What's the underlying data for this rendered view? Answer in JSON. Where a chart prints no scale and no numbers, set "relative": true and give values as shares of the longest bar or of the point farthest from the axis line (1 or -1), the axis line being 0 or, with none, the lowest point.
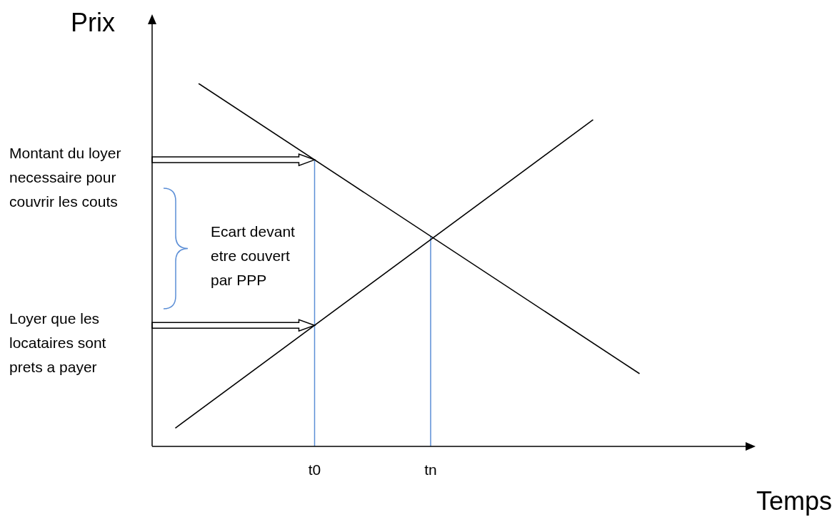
{
  "chart_data": {
    "type": "line",
    "relative": true,
    "xlabel": "Temps",
    "ylabel": "Prix",
    "categories": [
      null,
      null,
      null,
      null,
      null,
      null,
      null,
      "t0",
      null,
      null,
      null,
      null,
      "tn",
      null,
      null,
      null,
      null,
      null,
      null,
      null,
      null,
      null,
      null,
      null,
      null,
      null,
      null
    ],
    "series": [
      {
        "color": "#000000",
        "values": [
          null,
          null,
          1,
          null,
          null,
          null,
          null,
          null,
          null,
          null,
          null,
          null,
          null,
          null,
          null,
          null,
          null,
          null,
          null,
          null,
          null,
          0.2,
          null,
          null,
          null,
          null,
          null
        ]
      },
      {
        "color": "#000000",
        "values": [
          null,
          0.05,
          null,
          null,
          null,
          null,
          null,
          null,
          null,
          null,
          null,
          null,
          null,
          null,
          null,
          null,
          null,
          null,
          null,
          0.9,
          null,
          null,
          null,
          null,
          null,
          null,
          null
        ]
      }
    ],
    "ref_lines": [
      {
        "axis": "x",
        "value": "t0",
        "color": "#5b8ed6"
      },
      {
        "axis": "x",
        "value": "tn",
        "color": "#5b8ed6"
      }
    ],
    "annotations": [
      "Montant du loyer necessaire pour couvrir les couts",
      "Loyer que les locataires sont prets a payer",
      "Ecart devant etre couvert par PPP"
    ],
    "legend": false,
    "marker": "none",
    "line_style": "solid",
    "grid": false
  }
}
